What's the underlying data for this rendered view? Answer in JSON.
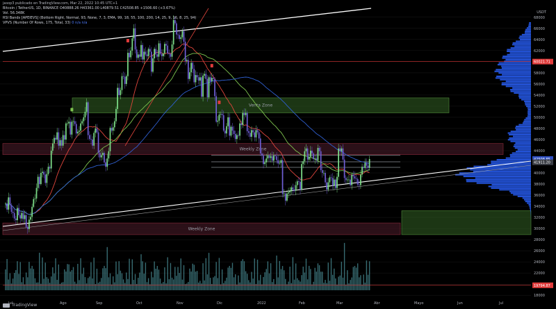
{
  "publisher": "jasop3 publicado en TradingView.com, Mar 22, 2022 10:45 UTC+1",
  "legend": {
    "symbol_line": "Bitcoin / TetherUS, 1D, BINANCE  O40888.26  H43361.00  L40879.51  C42508.85  +1506.60 (+3.67%)",
    "vol_line": "Vol.  56.348K",
    "rsi_line": "RSI Bands [APEIEVS] (Bottom Right, Normal, 93, None, 7, 3, EMA, 99, 18, 55, 100, 200, 14, 25, 9, 16, 8, 25, 94)",
    "vpvs_line": "VPVS (Number Of Rows, 175, Total, 33)",
    "vpvs_values": "0  n/a  n/a"
  },
  "currency": "USDT",
  "logo_text": "TradingView",
  "colors": {
    "background": "#000000",
    "candle_up": "#7ee08a",
    "candle_down": "#6f5fd6",
    "ma_red": "#e0453c",
    "ma_green": "#7ec44f",
    "ma_blue": "#2f5fd0",
    "trendline": "#ffffff",
    "support_zone": "#2e5a22",
    "weekly_zone": "#3a1620",
    "volume_profile": "#2962ff",
    "price_red": "#e03b3b",
    "price_blue": "#2f4fc2",
    "grid": "#1a1a1a"
  },
  "chart_data": {
    "type": "candlestick",
    "symbol": "BTCUSDT",
    "exchange": "BINANCE",
    "interval": "1D",
    "x_labels": [
      "Jul",
      "Ago",
      "Sep",
      "Oct",
      "Nov",
      "Dic",
      "2022",
      "Feb",
      "Mar",
      "Abr",
      "Mayo",
      "Jun",
      "Jul"
    ],
    "y_ticks": [
      18000,
      20000,
      22000,
      24000,
      26000,
      28000,
      30000,
      32000,
      34000,
      36000,
      38000,
      40000,
      42000,
      44000,
      46000,
      48000,
      50000,
      52000,
      54000,
      56000,
      58000,
      60000,
      62000,
      64000,
      66000,
      68000
    ],
    "ylim": [
      17400,
      69600
    ],
    "last": {
      "open": 40888.26,
      "high": 43361.0,
      "low": 40879.51,
      "close": 42508.85,
      "change": "+1506.60 (+3.67%)"
    },
    "price_labels": [
      {
        "text": "60021.71",
        "value": 60021.71,
        "color": "red"
      },
      {
        "text": "42508.85",
        "value": 42508.85,
        "color": "blue"
      },
      {
        "text": "41911.20",
        "value": 41911.2,
        "color": "grey"
      },
      {
        "text": "19794.87",
        "value": 19794.87,
        "color": "red"
      }
    ],
    "zones": [
      {
        "label": "Venta Zone",
        "low": 50800,
        "high": 53500,
        "color": "green"
      },
      {
        "label": "Weekly Zone",
        "low": 43300,
        "high": 45300,
        "color": "maroon"
      },
      {
        "label": "Weekly Zone",
        "low": 28900,
        "high": 31000,
        "color": "maroon"
      },
      {
        "label": "",
        "low": 28900,
        "high": 33200,
        "color": "green"
      }
    ],
    "horizontal_lines": [
      {
        "value": 60021.71,
        "color": "red"
      },
      {
        "value": 43200,
        "color": "grey"
      },
      {
        "value": 42000,
        "color": "grey"
      },
      {
        "value": 41000,
        "color": "grey"
      },
      {
        "value": 19794.87,
        "color": "red"
      }
    ],
    "closes": [
      34500,
      33400,
      35600,
      34200,
      33000,
      32800,
      31800,
      31500,
      33700,
      32400,
      31800,
      32800,
      31700,
      32400,
      30300,
      29900,
      31600,
      32100,
      33900,
      35300,
      35400,
      37300,
      39300,
      38000,
      40000,
      40200,
      39700,
      38200,
      39800,
      41100,
      40800,
      44000,
      45300,
      46300,
      46000,
      47300,
      44900,
      45900,
      44900,
      46800,
      46000,
      48900,
      48900,
      49200,
      46900,
      49200,
      49300,
      48800,
      47100,
      47400,
      47600,
      48900,
      49300,
      50000,
      51000,
      52700,
      46800,
      46100,
      46000,
      44900,
      47200,
      48000,
      47300,
      43600,
      42800,
      43200,
      43600,
      41900,
      41100,
      42600,
      43900,
      48100,
      47600,
      48200,
      49300,
      51500,
      55300,
      54000,
      54900,
      57400,
      57300,
      56000,
      57400,
      61600,
      60800,
      62000,
      64200,
      66000,
      62200,
      60700,
      61300,
      60900,
      63000,
      60400,
      61800,
      61300,
      61000,
      62300,
      61800,
      58200,
      60600,
      62300,
      61300,
      60900,
      63300,
      61400,
      61000,
      61500,
      63200,
      62900,
      61500,
      61400,
      60900,
      63100,
      67500,
      66900,
      64900,
      64800,
      64100,
      64400,
      65500,
      63600,
      60100,
      60300,
      56900,
      58100,
      59800,
      58700,
      56300,
      57600,
      57200,
      56600,
      57200,
      53700,
      57500,
      57800,
      56900,
      53600,
      57200,
      56500,
      57100,
      56900,
      53800,
      49200,
      49400,
      50500,
      50600,
      50400,
      47600,
      47100,
      48400,
      50000,
      46700,
      48300,
      47600,
      47000,
      46100,
      46800,
      46700,
      48900,
      48600,
      50800,
      50400,
      50800,
      47500,
      47200,
      46500,
      47700,
      47300,
      46400,
      47700,
      47300,
      46200,
      43500,
      43100,
      41600,
      41900,
      42600,
      43100,
      42700,
      43000,
      42200,
      43100,
      43000,
      42300,
      41700,
      41800,
      42300,
      36200,
      36300,
      35000,
      36300,
      36500,
      36700,
      37400,
      37000,
      36800,
      37800,
      38500,
      38400,
      37000,
      41600,
      42100,
      43900,
      44400,
      42400,
      42900,
      44000,
      43500,
      42500,
      42600,
      42300,
      44500,
      43900,
      40500,
      40000,
      40000,
      38300,
      37000,
      38300,
      39200,
      39100,
      37700,
      38800,
      37300,
      39300,
      44400,
      43900,
      44400,
      42400,
      39100,
      38700,
      38800,
      38800,
      37800,
      39700,
      39400,
      39000,
      38900,
      37900,
      37800,
      39700,
      41100,
      40900,
      41800,
      41300,
      40900,
      42500
    ]
  }
}
